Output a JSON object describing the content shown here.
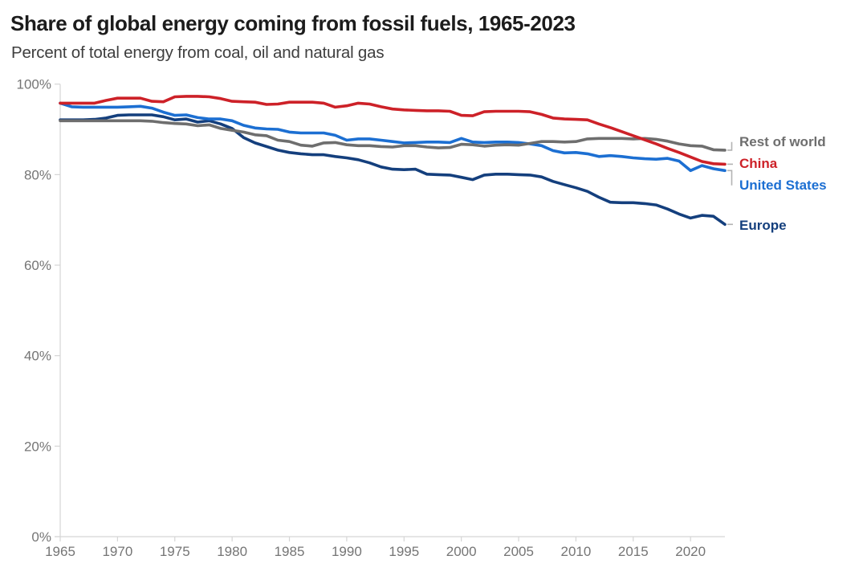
{
  "header": {
    "title": "Share of global energy coming from fossil fuels, 1965-2023",
    "subtitle": "Percent of total energy from coal, oil and natural gas"
  },
  "chart_data": {
    "type": "line",
    "title": "Share of global energy coming from fossil fuels, 1965-2023",
    "subtitle": "Percent of total energy from coal, oil and natural gas",
    "xlabel": "",
    "ylabel": "Percent of total energy from coal, oil and natural gas",
    "xlim": [
      1965,
      2023
    ],
    "ylim": [
      0,
      100
    ],
    "grid": false,
    "legend_position": "right-of-line-ends",
    "x_ticks": [
      1965,
      1970,
      1975,
      1980,
      1985,
      1990,
      1995,
      2000,
      2005,
      2010,
      2015,
      2020
    ],
    "x_tick_labels": [
      "1965",
      "1970",
      "1975",
      "1980",
      "1985",
      "1990",
      "1995",
      "2000",
      "2005",
      "2010",
      "2015",
      "2020"
    ],
    "y_ticks": [
      0,
      20,
      40,
      60,
      80,
      100
    ],
    "y_tick_labels": [
      "0%",
      "20%",
      "40%",
      "60%",
      "80%",
      "100%"
    ],
    "x": [
      1965,
      1966,
      1967,
      1968,
      1969,
      1970,
      1971,
      1972,
      1973,
      1974,
      1975,
      1976,
      1977,
      1978,
      1979,
      1980,
      1981,
      1982,
      1983,
      1984,
      1985,
      1986,
      1987,
      1988,
      1989,
      1990,
      1991,
      1992,
      1993,
      1994,
      1995,
      1996,
      1997,
      1998,
      1999,
      2000,
      2001,
      2002,
      2003,
      2004,
      2005,
      2006,
      2007,
      2008,
      2009,
      2010,
      2011,
      2012,
      2013,
      2014,
      2015,
      2016,
      2017,
      2018,
      2019,
      2020,
      2021,
      2022,
      2023
    ],
    "series": [
      {
        "name": "Rest of world",
        "color": "#6e6e6e",
        "values": [
          91.9,
          91.9,
          91.9,
          91.9,
          91.9,
          91.9,
          91.9,
          91.9,
          91.8,
          91.5,
          91.3,
          91.2,
          90.8,
          91.0,
          90.2,
          89.8,
          89.4,
          88.8,
          88.6,
          87.6,
          87.3,
          86.5,
          86.3,
          87.0,
          87.1,
          86.6,
          86.4,
          86.4,
          86.2,
          86.1,
          86.4,
          86.4,
          86.1,
          85.9,
          86.0,
          86.7,
          86.6,
          86.3,
          86.5,
          86.6,
          86.5,
          86.9,
          87.3,
          87.3,
          87.2,
          87.3,
          87.9,
          88.0,
          88.0,
          88.0,
          87.9,
          88.0,
          87.8,
          87.4,
          86.8,
          86.4,
          86.3,
          85.5,
          85.4
        ]
      },
      {
        "name": "China",
        "color": "#cd2128",
        "values": [
          95.8,
          95.8,
          95.8,
          95.8,
          96.4,
          96.9,
          96.9,
          96.9,
          96.2,
          96.1,
          97.2,
          97.3,
          97.3,
          97.2,
          96.8,
          96.2,
          96.1,
          96.0,
          95.5,
          95.6,
          96.0,
          96.0,
          96.0,
          95.8,
          94.9,
          95.2,
          95.8,
          95.6,
          95.0,
          94.5,
          94.3,
          94.2,
          94.1,
          94.1,
          94.0,
          93.1,
          93.0,
          93.9,
          94.0,
          94.0,
          94.0,
          93.9,
          93.3,
          92.5,
          92.3,
          92.2,
          92.1,
          91.2,
          90.4,
          89.5,
          88.6,
          87.7,
          86.8,
          85.8,
          84.9,
          83.9,
          82.9,
          82.4,
          82.3
        ]
      },
      {
        "name": "United States",
        "color": "#1c6fd2",
        "values": [
          95.8,
          95.0,
          94.9,
          94.9,
          94.9,
          94.9,
          95.0,
          95.1,
          94.7,
          93.8,
          93.1,
          93.2,
          92.6,
          92.3,
          92.3,
          91.9,
          90.9,
          90.3,
          90.1,
          90.0,
          89.4,
          89.2,
          89.2,
          89.2,
          88.7,
          87.6,
          87.9,
          87.9,
          87.6,
          87.3,
          87.0,
          87.1,
          87.2,
          87.2,
          87.1,
          88.0,
          87.2,
          87.1,
          87.2,
          87.2,
          87.1,
          86.8,
          86.4,
          85.3,
          84.8,
          84.9,
          84.6,
          84.0,
          84.2,
          84.0,
          83.7,
          83.5,
          83.4,
          83.6,
          83.0,
          80.9,
          82.0,
          81.3,
          80.9
        ]
      },
      {
        "name": "Europe",
        "color": "#143f7d",
        "values": [
          92.1,
          92.1,
          92.1,
          92.2,
          92.5,
          93.1,
          93.2,
          93.2,
          93.2,
          92.8,
          92.1,
          92.3,
          91.6,
          91.9,
          91.2,
          90.2,
          88.2,
          87.0,
          86.2,
          85.4,
          84.9,
          84.6,
          84.4,
          84.4,
          84.0,
          83.7,
          83.3,
          82.6,
          81.7,
          81.2,
          81.1,
          81.2,
          80.1,
          80.0,
          79.9,
          79.4,
          78.9,
          79.9,
          80.1,
          80.1,
          80.0,
          79.9,
          79.5,
          78.5,
          77.8,
          77.1,
          76.3,
          75.0,
          73.9,
          73.8,
          73.8,
          73.6,
          73.3,
          72.4,
          71.3,
          70.4,
          71.0,
          70.8,
          69.0
        ]
      }
    ],
    "style": {
      "axis_line_color": "#d5d5d5",
      "tick_label_color": "#757575",
      "connector_color": "#b3b3b3",
      "title_color": "#1c1c1c",
      "subtitle_color": "#3e3e3e"
    }
  }
}
